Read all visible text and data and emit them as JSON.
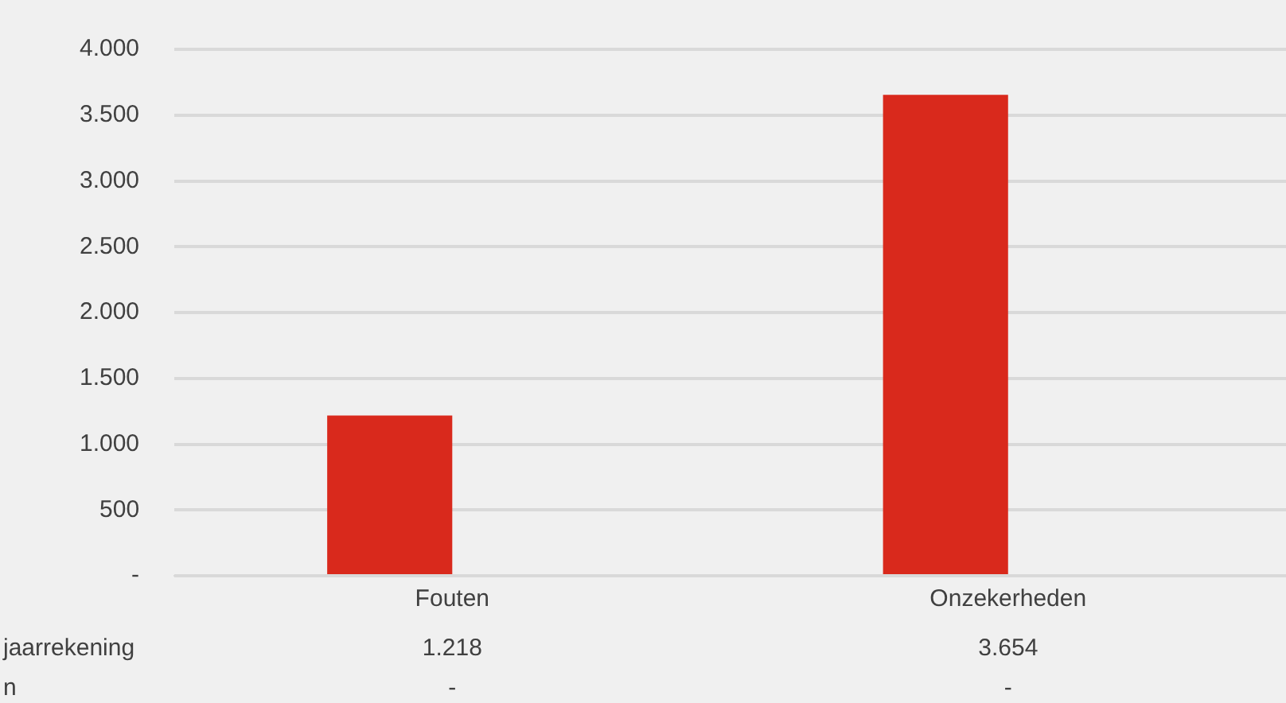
{
  "chart_data": {
    "type": "bar",
    "categories": [
      "Fouten",
      "Onzekerheden"
    ],
    "series": [
      {
        "name": "jaarrekening",
        "color": "#d9291c",
        "values": [
          1218,
          3654
        ],
        "value_labels": [
          "1.218",
          "3.654"
        ]
      },
      {
        "name": "n",
        "values": [
          0,
          0
        ],
        "value_labels": [
          "-",
          "-"
        ]
      }
    ],
    "ylim": [
      0,
      4000
    ],
    "yticks": [
      {
        "value": 0,
        "label": "-"
      },
      500,
      {
        "value": 1000,
        "label": "1.000"
      },
      {
        "value": 1500,
        "label": "1.500"
      },
      {
        "value": 2000,
        "label": "2.000"
      },
      {
        "value": 2500,
        "label": "2.500"
      },
      {
        "value": 3000,
        "label": "3.000"
      },
      {
        "value": 3500,
        "label": "3.500"
      },
      {
        "value": 4000,
        "label": "4.000"
      }
    ],
    "grid": "y",
    "legend": false
  }
}
